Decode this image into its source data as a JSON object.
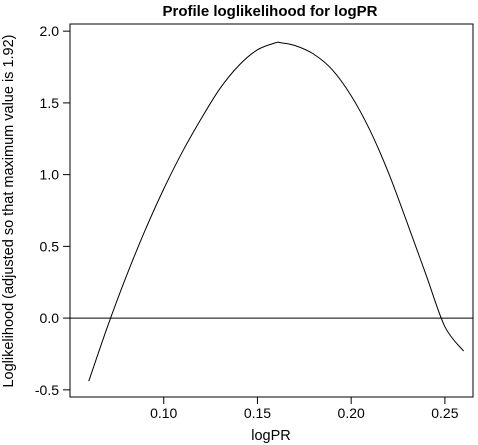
{
  "chart_data": {
    "type": "line",
    "title": "Profile loglikelihood for logPR",
    "xlabel": "logPR",
    "ylabel": "Loglikelihood (adjusted so that maximum value is 1.92)",
    "xlim": [
      0.05,
      0.265
    ],
    "ylim": [
      -0.55,
      2.05
    ],
    "xticks": [
      0.1,
      0.15,
      0.2,
      0.25
    ],
    "xtick_labels": [
      "0.10",
      "0.15",
      "0.20",
      "0.25"
    ],
    "yticks": [
      -0.5,
      0.0,
      0.5,
      1.0,
      1.5,
      2.0
    ],
    "ytick_labels": [
      "-0.5",
      "0.0",
      "0.5",
      "1.0",
      "1.5",
      "2.0"
    ],
    "reference_line": {
      "y": 0.0
    },
    "grid": false,
    "series": [
      {
        "x": [
          0.06,
          0.07,
          0.08,
          0.09,
          0.1,
          0.11,
          0.12,
          0.13,
          0.14,
          0.15,
          0.16,
          0.162,
          0.17,
          0.18,
          0.19,
          0.2,
          0.21,
          0.22,
          0.23,
          0.24,
          0.25,
          0.26
        ],
        "values": [
          -0.44,
          -0.06,
          0.29,
          0.61,
          0.9,
          1.16,
          1.39,
          1.6,
          1.76,
          1.87,
          1.92,
          1.92,
          1.9,
          1.84,
          1.73,
          1.55,
          1.31,
          1.01,
          0.66,
          0.3,
          -0.06,
          -0.23
        ]
      }
    ]
  }
}
